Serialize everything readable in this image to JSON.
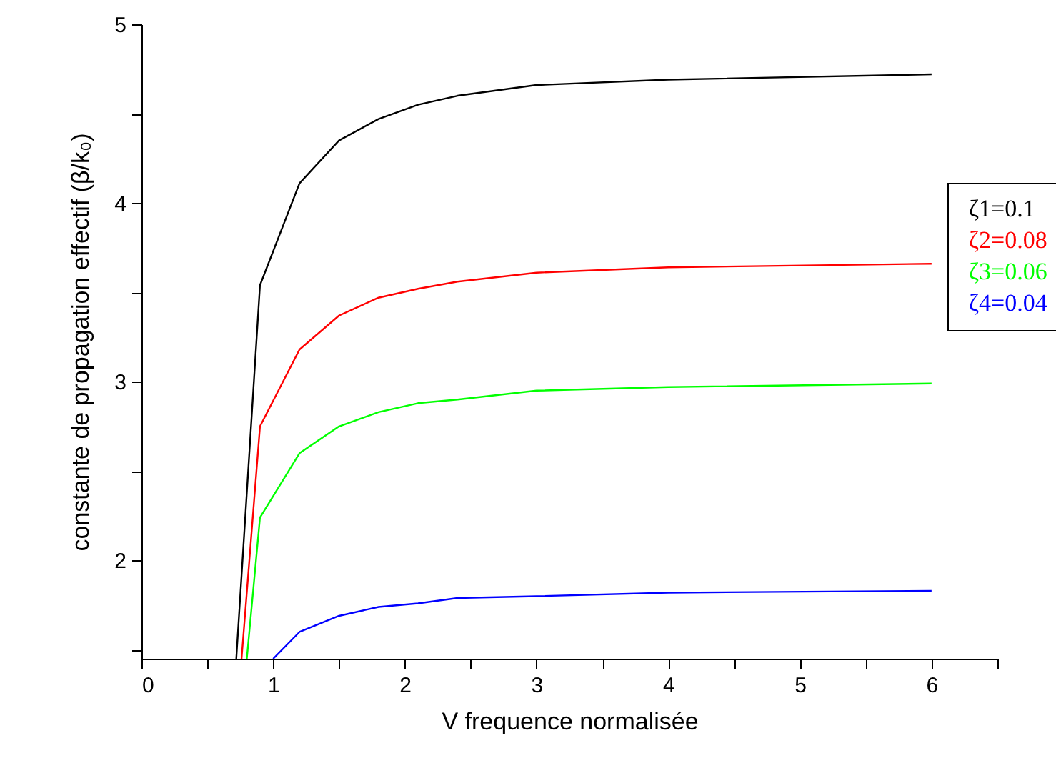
{
  "chart_data": {
    "type": "line",
    "xlabel": "V frequence normalisée",
    "ylabel": "constante de propagation effectif (β/k₀)",
    "xlim": [
      0,
      6.5
    ],
    "ylim": [
      1.45,
      5
    ],
    "xticks": [
      0,
      {
        "value": 0.5,
        "label": null
      },
      1,
      {
        "value": 1.5,
        "label": null
      },
      2,
      {
        "value": 2.5,
        "label": null
      },
      3,
      {
        "value": 3.5,
        "label": null
      },
      4,
      {
        "value": 4.5,
        "label": null
      },
      5,
      {
        "value": 5.5,
        "label": null
      },
      6,
      {
        "value": 6.5,
        "label": null
      }
    ],
    "yticks": [
      {
        "value": 1.5,
        "label": null
      },
      2,
      {
        "value": 2.5,
        "label": null
      },
      3,
      {
        "value": 3.5,
        "label": null
      },
      4,
      {
        "value": 4.5,
        "label": null
      },
      5
    ],
    "grid": false,
    "legend": "right",
    "line_style": "solid",
    "marker": "none",
    "series": [
      {
        "name": "ζ1=0.1",
        "color": "#000000",
        "x": [
          0.72,
          0.9,
          1.2,
          1.5,
          1.8,
          2.1,
          2.4,
          3,
          4,
          6
        ],
        "values": [
          1.45,
          3.54,
          4.11,
          4.35,
          4.47,
          4.55,
          4.6,
          4.66,
          4.69,
          4.72
        ]
      },
      {
        "name": "ζ2=0.08",
        "color": "#ff0000",
        "x": [
          0.76,
          0.9,
          1.2,
          1.5,
          1.8,
          2.1,
          2.4,
          3,
          4,
          6
        ],
        "values": [
          1.45,
          2.75,
          3.18,
          3.37,
          3.47,
          3.52,
          3.56,
          3.61,
          3.64,
          3.66
        ]
      },
      {
        "name": "ζ3=0.06",
        "color": "#00ff00",
        "x": [
          0.8,
          0.9,
          1.2,
          1.5,
          1.8,
          2.1,
          2.4,
          3,
          4,
          6
        ],
        "values": [
          1.45,
          2.24,
          2.6,
          2.75,
          2.83,
          2.88,
          2.9,
          2.95,
          2.97,
          2.99
        ]
      },
      {
        "name": "ζ4=0.04",
        "color": "#0000ff",
        "x": [
          1.0,
          1.2,
          1.5,
          1.8,
          2.1,
          2.4,
          3,
          4,
          6
        ],
        "values": [
          1.45,
          1.6,
          1.69,
          1.74,
          1.76,
          1.79,
          1.8,
          1.82,
          1.83
        ]
      }
    ]
  }
}
